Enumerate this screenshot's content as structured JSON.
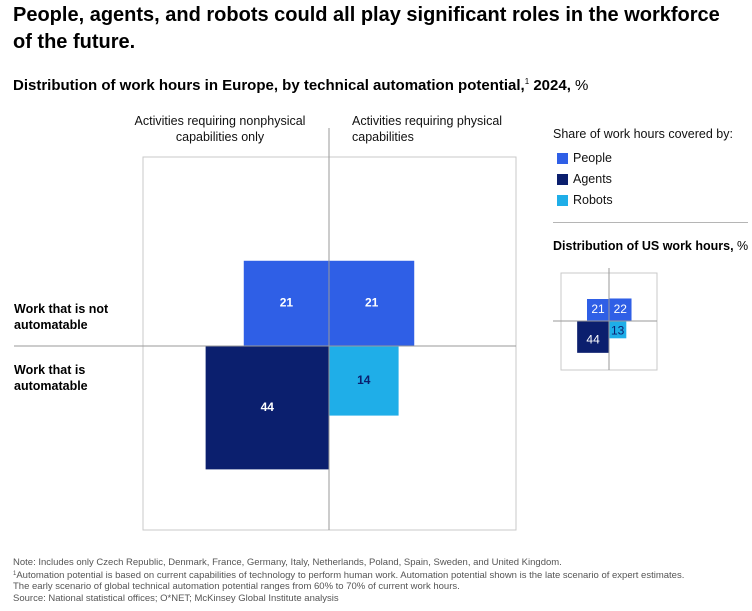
{
  "headline": "People, agents, and robots could all play significant roles in the workforce of the future.",
  "subtitle": {
    "main": "Distribution of work hours in Europe, by technical automation potential,",
    "footnote_mark": "1",
    "year": "2024,",
    "unit": "%"
  },
  "columns": {
    "left": "Activities requiring nonphysical capabilities only",
    "right": "Activities requiring physical capabilities"
  },
  "rows": {
    "top": "Work that is not automatable",
    "bottom": "Work that is automatable"
  },
  "legend": {
    "title": "Share of work hours covered by:",
    "items": [
      {
        "label": "People",
        "color": "#2f5fe6"
      },
      {
        "label": "Agents",
        "color": "#0b1f6e"
      },
      {
        "label": "Robots",
        "color": "#1faee8"
      }
    ]
  },
  "us_title": {
    "main": "Distribution of US work hours,",
    "unit": "%"
  },
  "chart_data": [
    {
      "type": "quadrant-area",
      "region": "Europe",
      "columns": [
        "Activities requiring nonphysical capabilities only",
        "Activities requiring physical capabilities"
      ],
      "rows": [
        "Work that is not automatable",
        "Work that is automatable"
      ],
      "cells": [
        {
          "column": "nonphysical",
          "row": "not automatable",
          "series": "People",
          "value": 21
        },
        {
          "column": "physical",
          "row": "not automatable",
          "series": "People",
          "value": 21
        },
        {
          "column": "nonphysical",
          "row": "automatable",
          "series": "Agents",
          "value": 44
        },
        {
          "column": "physical",
          "row": "automatable",
          "series": "Robots",
          "value": 14
        }
      ]
    },
    {
      "type": "quadrant-area",
      "region": "US",
      "cells": [
        {
          "column": "nonphysical",
          "row": "not automatable",
          "series": "People",
          "value": 21
        },
        {
          "column": "physical",
          "row": "not automatable",
          "series": "People",
          "value": 22
        },
        {
          "column": "nonphysical",
          "row": "automatable",
          "series": "Agents",
          "value": 44
        },
        {
          "column": "physical",
          "row": "automatable",
          "series": "Robots",
          "value": 13
        }
      ]
    }
  ],
  "notes": {
    "note": "Note: Includes only Czech Republic, Denmark, France, Germany, Italy, Netherlands, Poland, Spain, Sweden, and United Kingdom.",
    "footnote_mark": "1",
    "footnote_line1": "Automation potential is based on current capabilities of technology to perform human work. Automation potential shown is the late scenario of expert estimates.",
    "footnote_line2": "The early scenario of global technical automation potential ranges from 60% to 70% of current work hours.",
    "source": "Source: National statistical offices; O*NET; McKinsey Global Institute analysis"
  }
}
